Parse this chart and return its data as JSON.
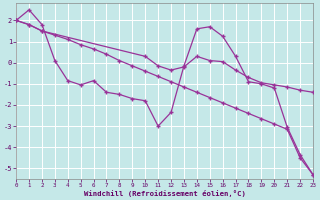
{
  "xlabel": "Windchill (Refroidissement éolien,°C)",
  "bg_color": "#c5e8e8",
  "line_color": "#993399",
  "grid_color": "#aad4d4",
  "xmin": 0,
  "xmax": 23,
  "ymin": -5.5,
  "ymax": 2.8,
  "yticks": [
    -5,
    -4,
    -3,
    -2,
    -1,
    0,
    1,
    2
  ],
  "xticks": [
    0,
    1,
    2,
    3,
    4,
    5,
    6,
    7,
    8,
    9,
    10,
    11,
    12,
    13,
    14,
    15,
    16,
    17,
    18,
    19,
    20,
    21,
    22,
    23
  ],
  "line1_x": [
    0,
    1,
    2,
    3,
    4,
    5,
    6,
    7,
    8,
    9,
    10,
    11,
    12,
    13,
    14,
    15,
    16,
    17,
    18,
    19,
    20,
    21,
    22,
    23
  ],
  "line1_y": [
    2.0,
    2.5,
    1.8,
    0.1,
    -0.85,
    -1.05,
    -0.85,
    -1.4,
    -1.5,
    -1.7,
    -1.8,
    -3.0,
    -2.35,
    -0.15,
    1.6,
    1.7,
    1.25,
    0.3,
    -0.9,
    -1.0,
    -1.2,
    -3.05,
    -4.35,
    -5.3
  ],
  "line2_x": [
    0,
    1,
    2,
    10,
    11,
    12,
    13,
    14,
    15,
    16,
    17,
    18,
    19,
    20,
    21,
    22,
    23
  ],
  "line2_y": [
    2.0,
    1.8,
    1.5,
    0.3,
    -0.15,
    -0.35,
    -0.2,
    0.3,
    0.1,
    0.05,
    -0.35,
    -0.7,
    -0.95,
    -1.05,
    -1.15,
    -1.3,
    -1.4
  ],
  "line3_x": [
    0,
    1,
    2,
    3,
    4,
    5,
    6,
    7,
    8,
    9,
    10,
    11,
    12,
    13,
    14,
    15,
    16,
    17,
    18,
    19,
    20,
    21,
    22,
    23
  ],
  "line3_y": [
    2.0,
    1.8,
    1.5,
    1.3,
    1.1,
    0.85,
    0.65,
    0.4,
    0.1,
    -0.15,
    -0.4,
    -0.65,
    -0.9,
    -1.15,
    -1.4,
    -1.65,
    -1.9,
    -2.15,
    -2.4,
    -2.65,
    -2.9,
    -3.15,
    -4.5,
    -5.3
  ]
}
